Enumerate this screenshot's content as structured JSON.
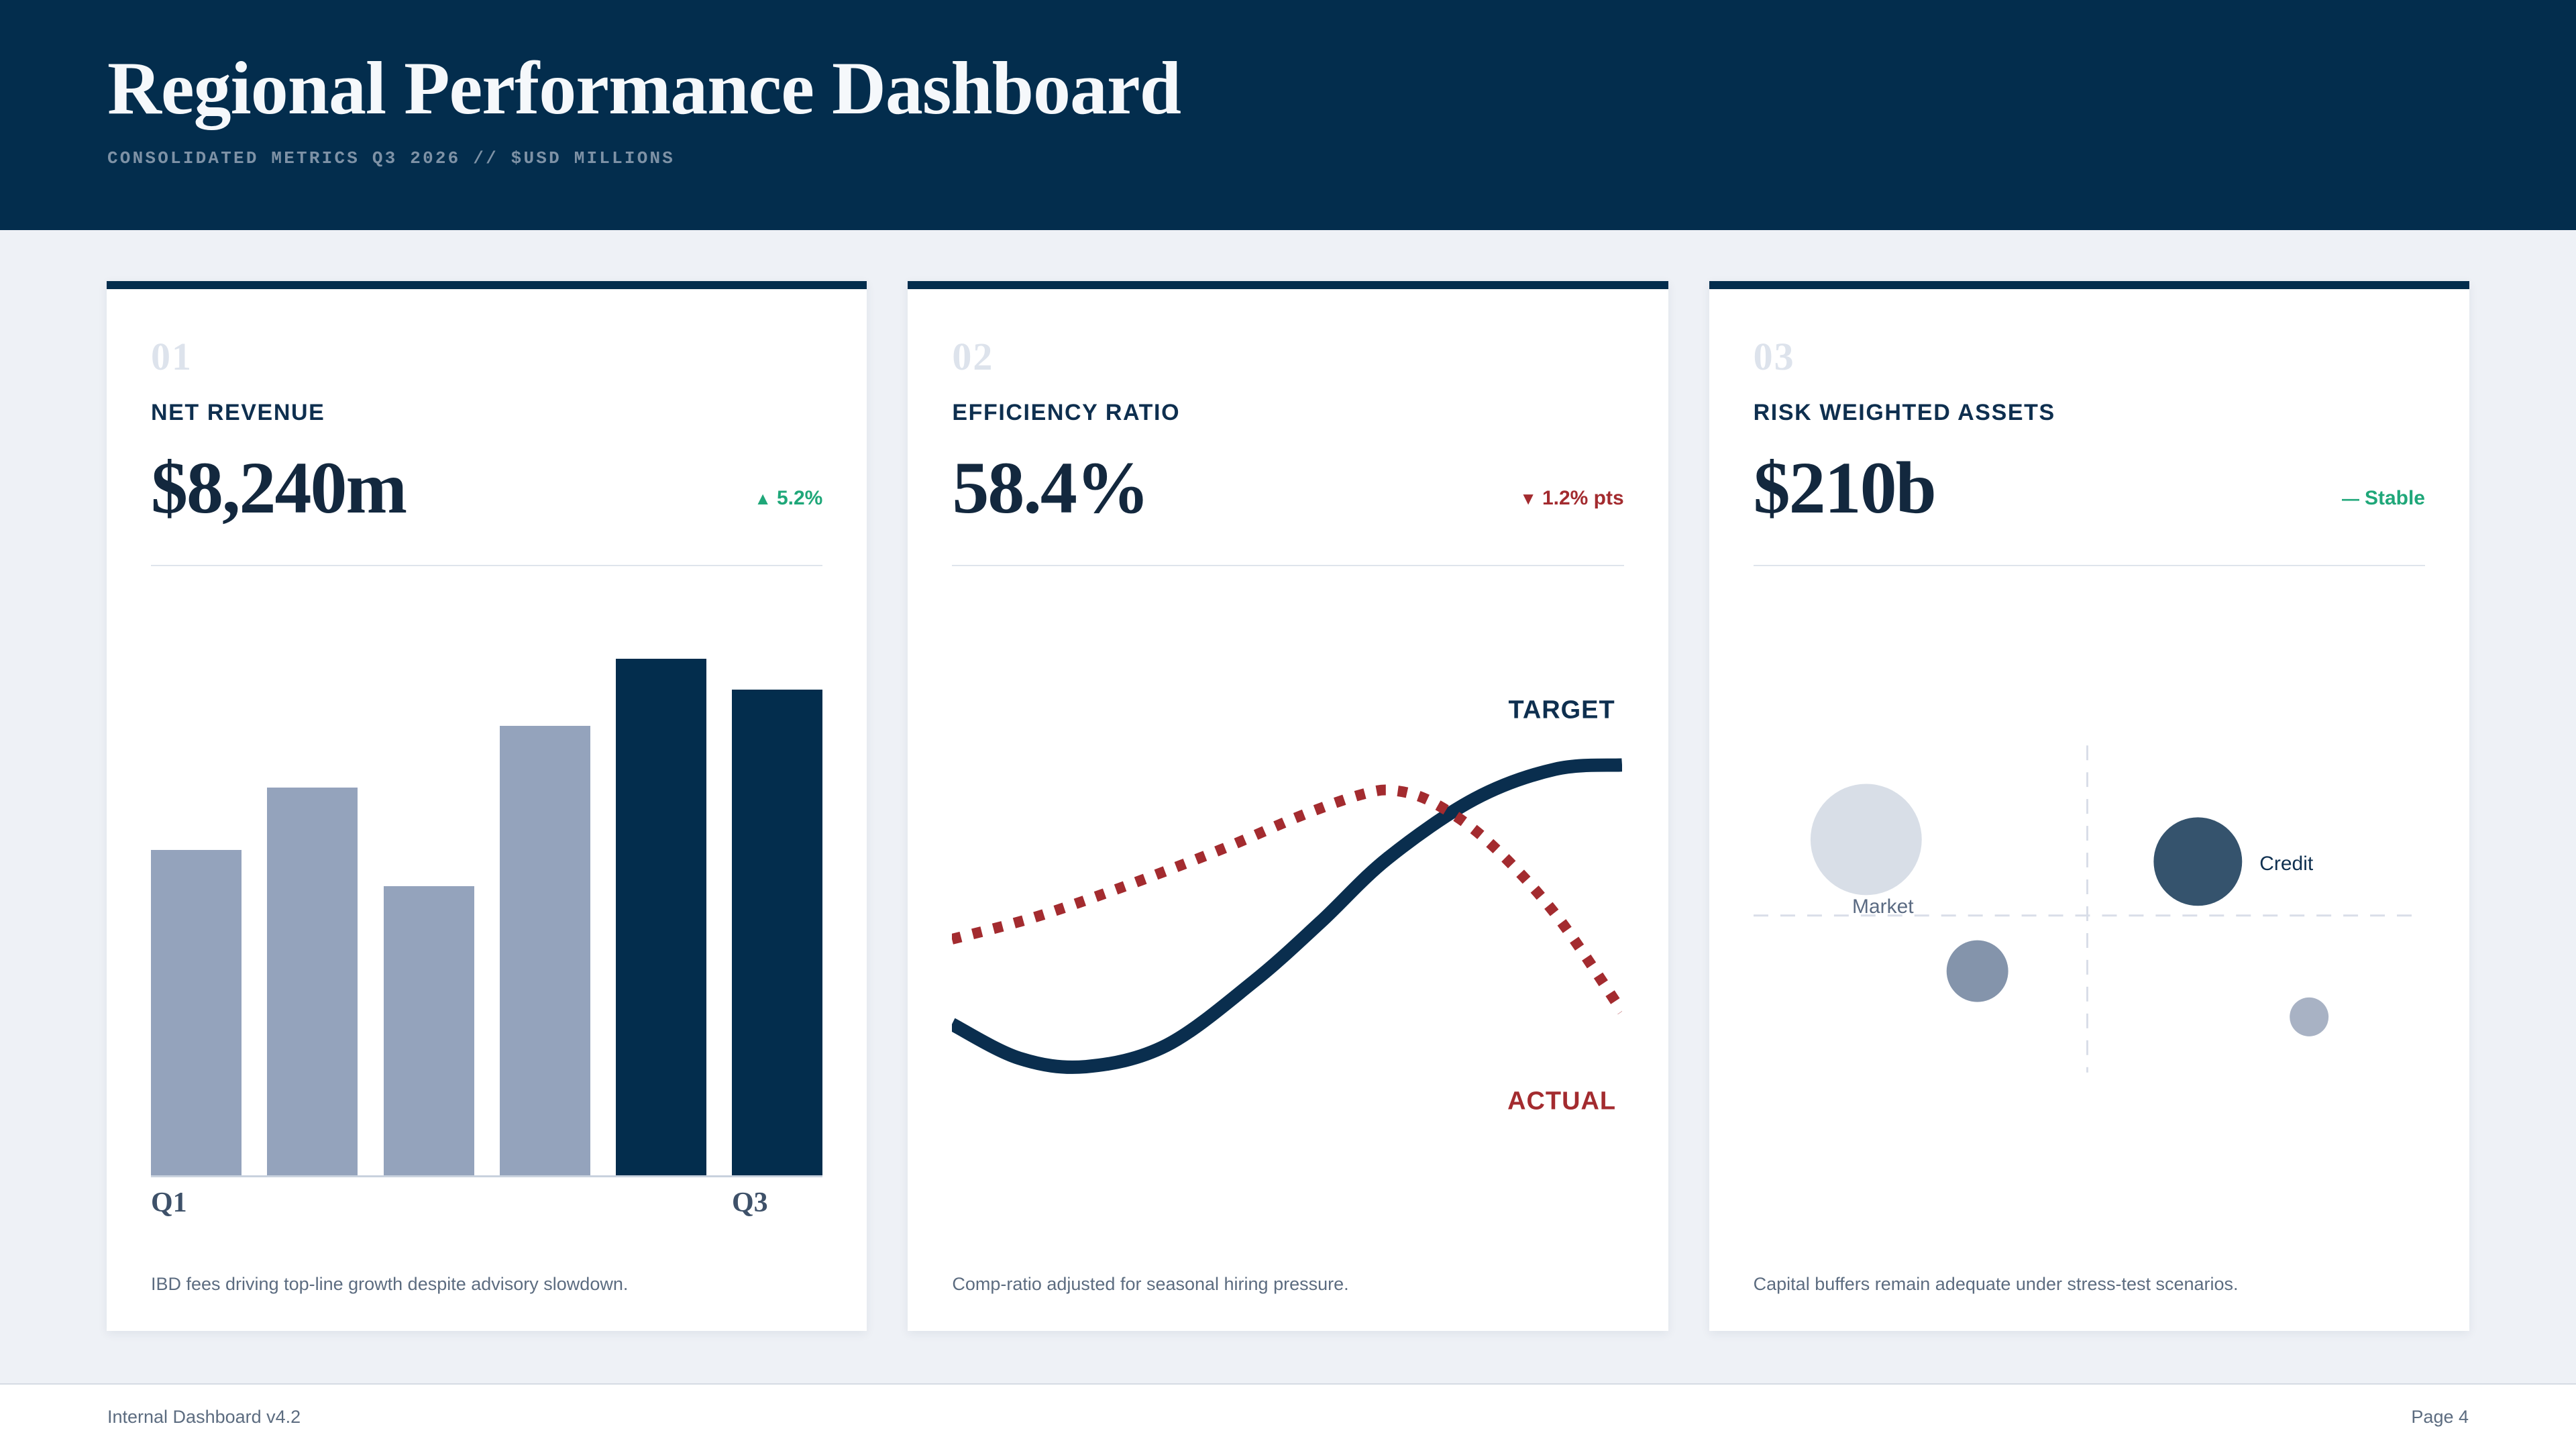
{
  "header": {
    "title": "Regional Performance Dashboard",
    "subtitle": "CONSOLIDATED METRICS Q3 2026 // $USD MILLIONS"
  },
  "footer": {
    "left": "Internal Dashboard v4.2",
    "right": "Page 4"
  },
  "accent_colors": {
    "navy": "#032D4D",
    "green": "#1FA779",
    "red": "#A32B2F",
    "slate": "#94A3BC"
  },
  "cards": [
    {
      "index": "01",
      "label": "NET REVENUE",
      "value": "$8,240m",
      "delta": {
        "symbol": "▲",
        "text": "5.2%",
        "color": "#1FA779",
        "direction": "up"
      },
      "caption": "IBD fees driving top-line growth despite advisory slowdown."
    },
    {
      "index": "02",
      "label": "EFFICIENCY RATIO",
      "value": "58.4%",
      "delta": {
        "symbol": "▼",
        "text": "1.2% pts",
        "color": "#A32B2F",
        "direction": "down"
      },
      "caption": "Comp-ratio adjusted for seasonal hiring pressure."
    },
    {
      "index": "03",
      "label": "RISK WEIGHTED ASSETS",
      "value": "$210b",
      "delta": {
        "symbol": "—",
        "text": "Stable",
        "color": "#1FA779",
        "direction": "flat"
      },
      "caption": "Capital buffers remain adequate under stress-test scenarios."
    }
  ],
  "chart_data": [
    {
      "type": "bar",
      "title": "Net revenue by quarter (6 periods, last two highlighted)",
      "values_pct_of_max": [
        63,
        75,
        56,
        87,
        100,
        94
      ],
      "bar_colors": [
        "#94A3BC",
        "#94A3BC",
        "#94A3BC",
        "#94A3BC",
        "#032D4D",
        "#032D4D"
      ],
      "x_tick_labels": [
        {
          "bar_index": 0,
          "text": "Q1"
        },
        {
          "bar_index": 5,
          "text": "Q3"
        }
      ],
      "axis_line_color": "#C9D2DE",
      "grid": false
    },
    {
      "type": "line",
      "title": "Efficiency ratio: target vs actual",
      "grid": false,
      "series": [
        {
          "name": "TARGET",
          "style": "solid",
          "color": "#0A2E4E",
          "stroke_width": 20,
          "points": [
            [
              0,
              21
            ],
            [
              10,
              13
            ],
            [
              20,
              11
            ],
            [
              32,
              16
            ],
            [
              45,
              31
            ],
            [
              55,
              45
            ],
            [
              65,
              60
            ],
            [
              78,
              74
            ],
            [
              90,
              81
            ],
            [
              100,
              82
            ]
          ],
          "label": {
            "x": 91,
            "y": 93,
            "anchor": "middle",
            "color": "#0E2F4F"
          }
        },
        {
          "name": "ACTUAL",
          "style": "dashed",
          "color": "#A32B2F",
          "stroke_width": 16,
          "points": [
            [
              0,
              41
            ],
            [
              12,
              46
            ],
            [
              25,
              53
            ],
            [
              40,
              62
            ],
            [
              52,
              70
            ],
            [
              61,
              75
            ],
            [
              66,
              76
            ],
            [
              72,
              73
            ],
            [
              80,
              64
            ],
            [
              90,
              47
            ],
            [
              100,
              24
            ]
          ],
          "label": {
            "x": 91,
            "y": 1,
            "anchor": "middle",
            "color": "#A32B2F"
          }
        }
      ]
    },
    {
      "type": "bubble",
      "title": "Risk-weighted assets composition quadrant",
      "grid": false,
      "crosshair": {
        "x": 49.8,
        "y": 48.4,
        "v_extent": [
          10,
          90
        ],
        "color": "#D9DEE8"
      },
      "points": [
        {
          "label": "Market",
          "x": 16.8,
          "y": 67.0,
          "r": 83,
          "color": "#D8DEE7",
          "label_anchor": "middle",
          "label_x": 19.3,
          "label_y": 49,
          "label_color": "#5A6A82"
        },
        {
          "label": "Credit",
          "x": 66.3,
          "y": 61.6,
          "r": 66,
          "color": "#35536D",
          "label_anchor": "start",
          "label_x": 75.5,
          "label_y": 59.5,
          "label_color": "#0F3050"
        },
        {
          "label": "",
          "x": 33.4,
          "y": 34.8,
          "r": 46,
          "color": "#8494AB"
        },
        {
          "label": "",
          "x": 82.9,
          "y": 23.6,
          "r": 29,
          "color": "#A8B2C4"
        }
      ]
    }
  ]
}
